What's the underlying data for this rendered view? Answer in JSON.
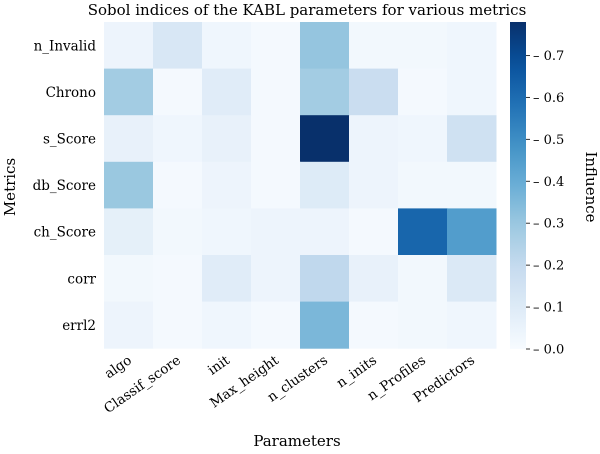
{
  "chart_data": {
    "type": "heatmap",
    "title": "Sobol indices of the KABL parameters for various metrics",
    "xlabel": "Parameters",
    "ylabel": "Metrics",
    "colorbar_label": "Influence",
    "colormap": "Blues",
    "colorbar_ticks": [
      "0.0",
      "0.1",
      "0.2",
      "0.3",
      "0.4",
      "0.5",
      "0.6",
      "0.7"
    ],
    "vmin": 0.0,
    "vmax": 0.78,
    "x_categories": [
      "algo",
      "Classif_score",
      "init",
      "Max_height",
      "n_clusters",
      "n_inits",
      "n_Profiles",
      "Predictors"
    ],
    "y_categories": [
      "n_Invalid",
      "Chrono",
      "s_Score",
      "db_Score",
      "ch_Score",
      "corr",
      "errl2"
    ],
    "values": [
      [
        0.04,
        0.12,
        0.03,
        0.01,
        0.31,
        0.02,
        0.02,
        0.03
      ],
      [
        0.28,
        0.01,
        0.09,
        0.01,
        0.28,
        0.18,
        0.01,
        0.03
      ],
      [
        0.06,
        0.03,
        0.06,
        0.01,
        0.78,
        0.04,
        0.03,
        0.16
      ],
      [
        0.3,
        0.01,
        0.04,
        0.01,
        0.1,
        0.04,
        0.02,
        0.02
      ],
      [
        0.07,
        0.02,
        0.03,
        0.04,
        0.04,
        0.01,
        0.62,
        0.45
      ],
      [
        0.02,
        0.01,
        0.09,
        0.04,
        0.21,
        0.06,
        0.02,
        0.11
      ],
      [
        0.04,
        0.01,
        0.03,
        0.01,
        0.36,
        0.01,
        0.02,
        0.03
      ]
    ]
  }
}
